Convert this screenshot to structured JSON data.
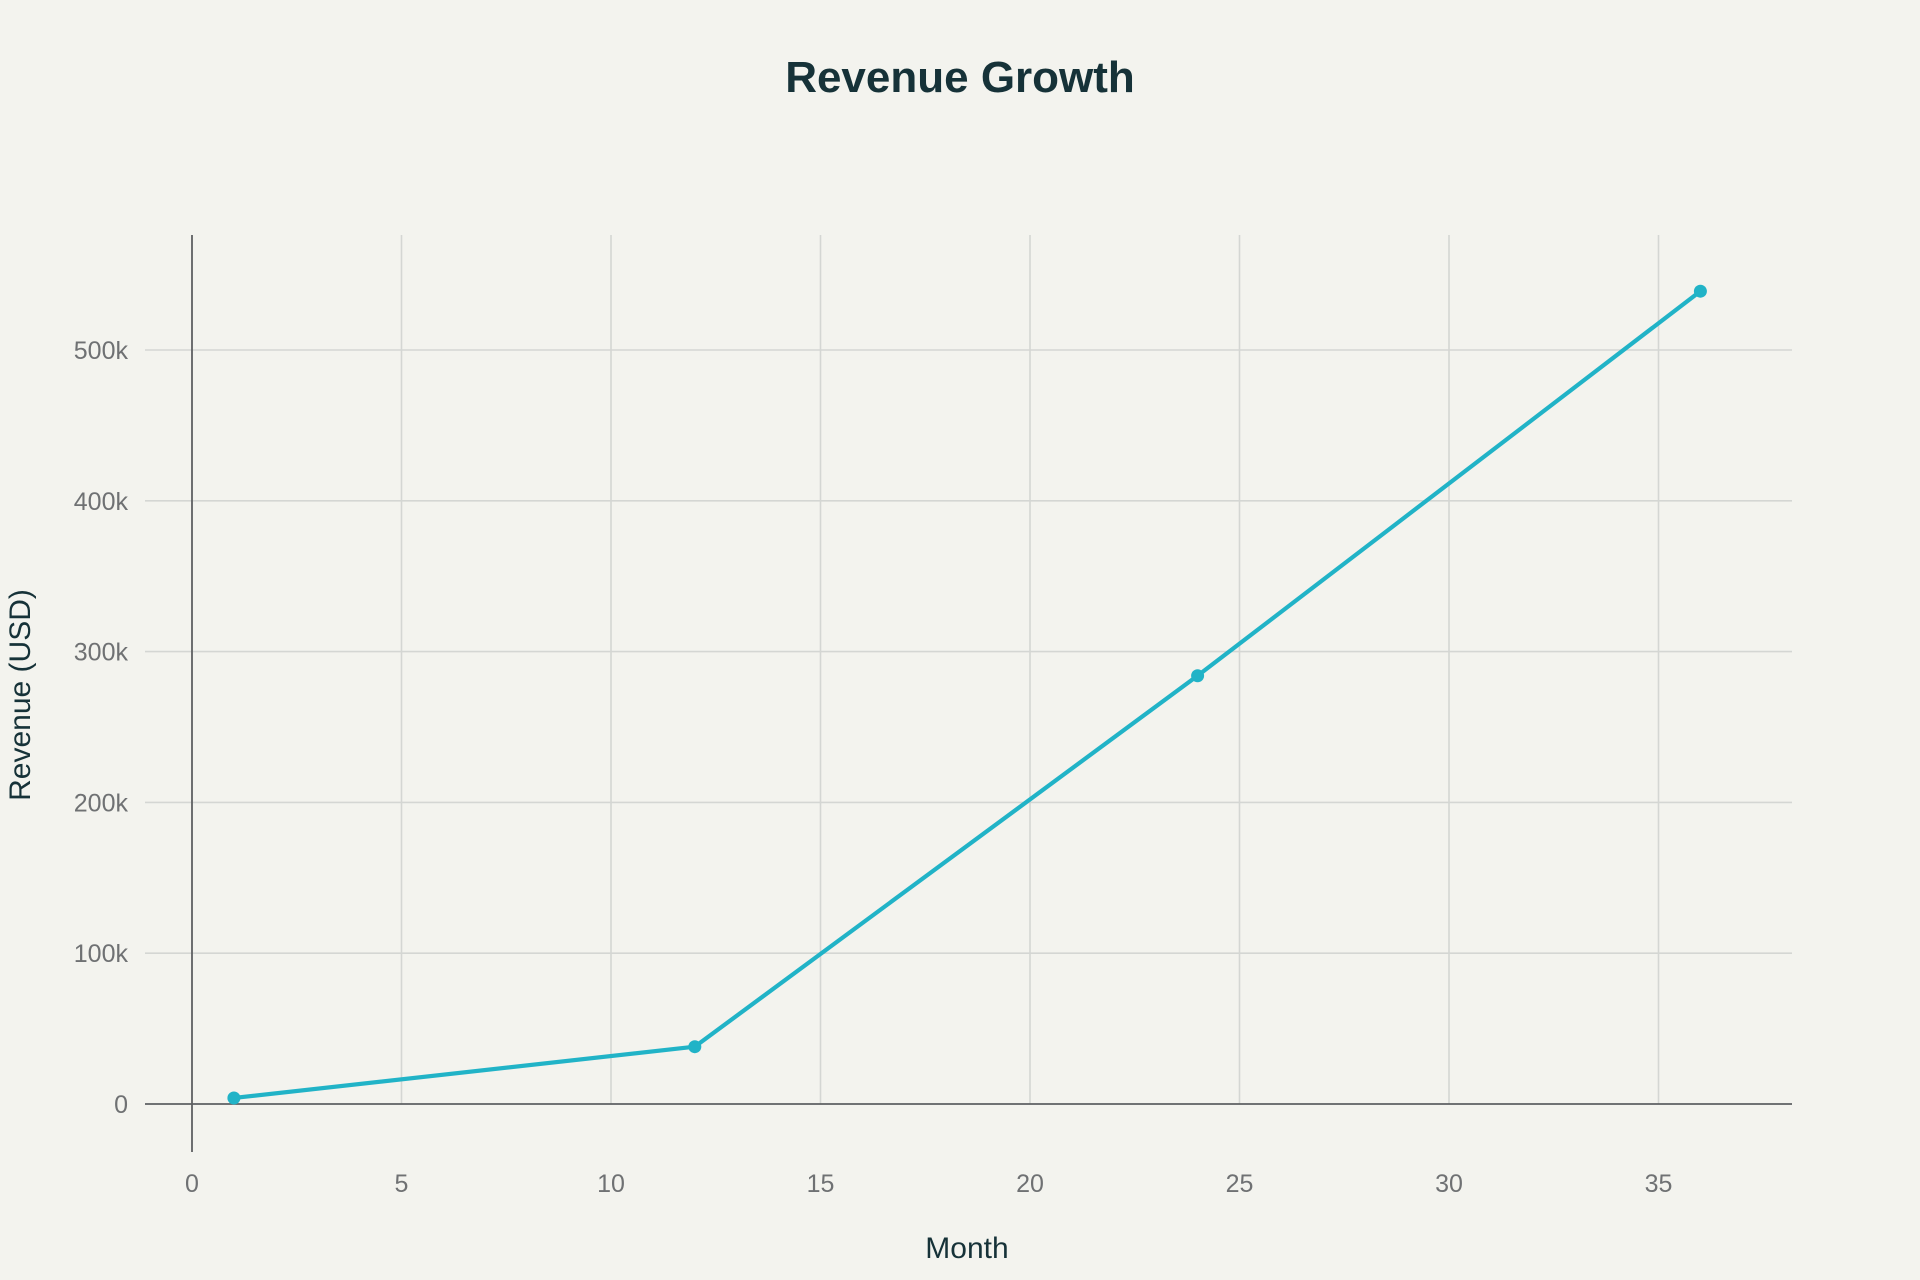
{
  "chart_data": {
    "type": "line",
    "title": "Revenue Growth",
    "xlabel": "Month",
    "ylabel": "Revenue (USD)",
    "xlim": [
      0,
      38
    ],
    "ylim": [
      -30000,
      580000
    ],
    "x_ticks": [
      0,
      5,
      10,
      15,
      20,
      25,
      30,
      35
    ],
    "x_tick_labels": [
      "0",
      "5",
      "10",
      "15",
      "20",
      "25",
      "30",
      "35"
    ],
    "y_ticks": [
      0,
      100000,
      200000,
      300000,
      400000,
      500000
    ],
    "y_tick_labels": [
      "0",
      "100k",
      "200k",
      "300k",
      "400k",
      "500k"
    ],
    "grid": true,
    "legend": false,
    "series": [
      {
        "color": "#21b3c7",
        "markers": true,
        "x": [
          1,
          12,
          24,
          36
        ],
        "y": [
          4000,
          38000,
          284000,
          539000
        ]
      }
    ]
  }
}
